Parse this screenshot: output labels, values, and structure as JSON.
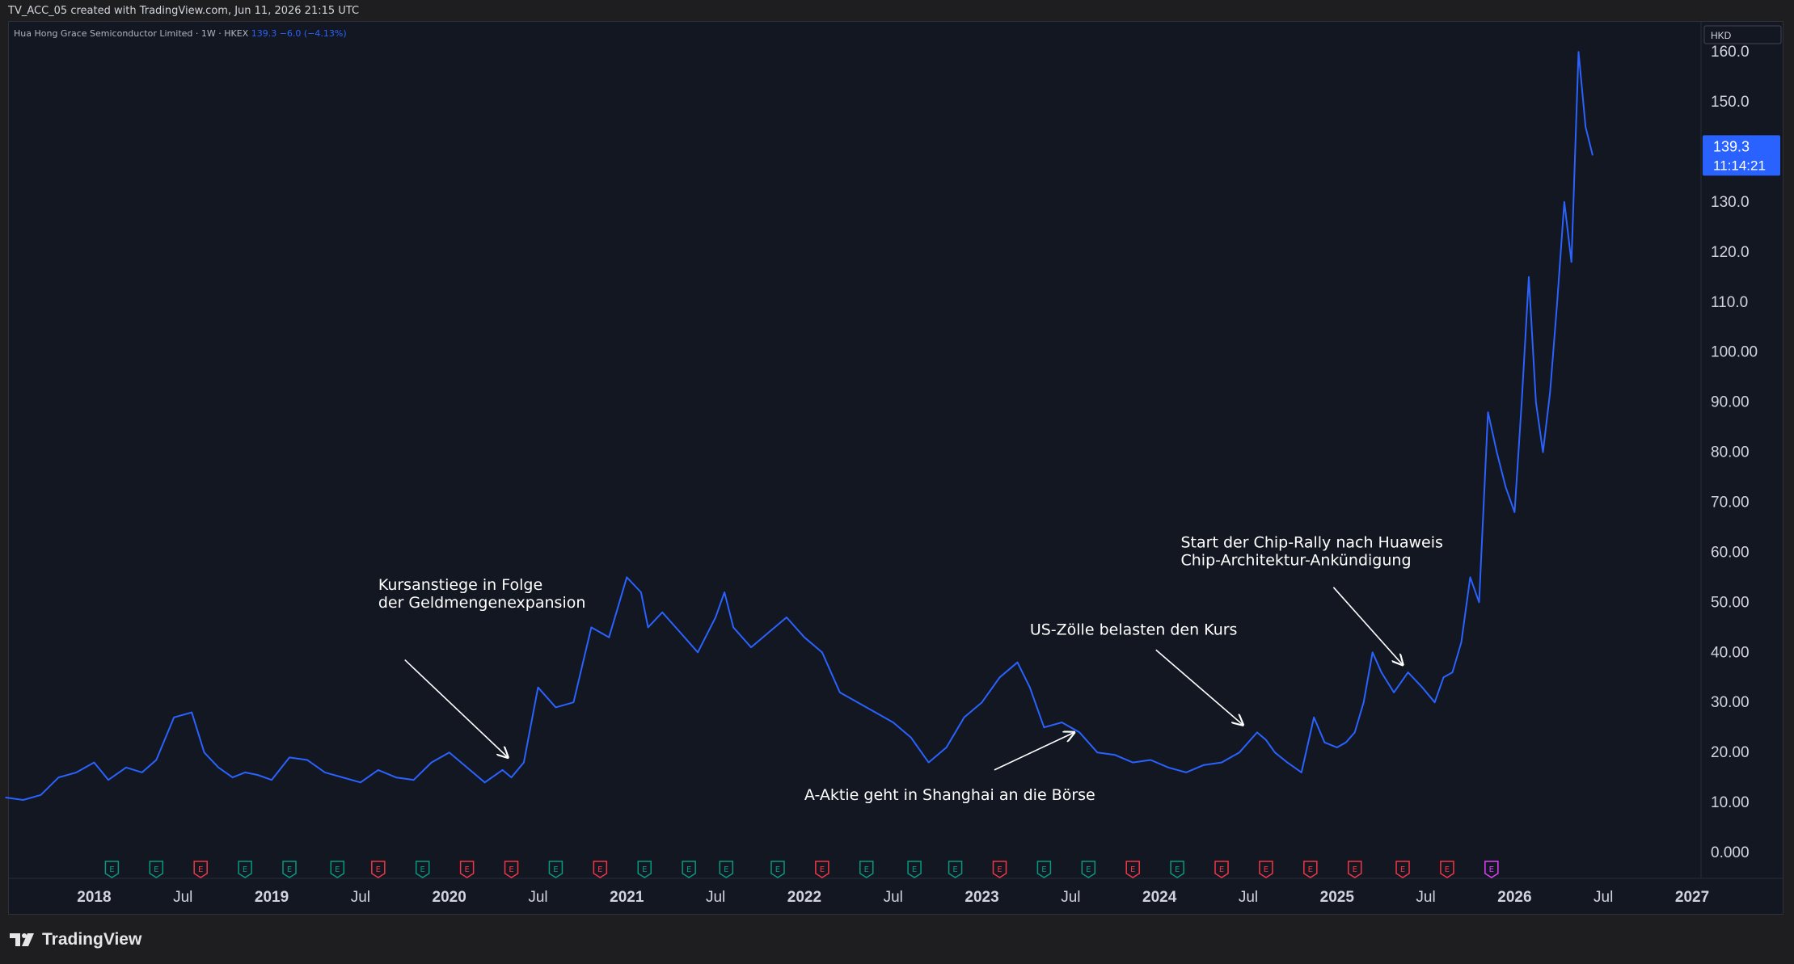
{
  "header": {
    "caption": "TV_ACC_05 created with TradingView.com, Jun 11, 2026 21:15 UTC"
  },
  "legend": {
    "symbol": "Hua Hong Grace Semiconductor Limited · 1W · HKEX",
    "last": "139.3",
    "change": "−6.0 (−4.13%)"
  },
  "currency_label": "HKD",
  "price_badge": {
    "price": "139.3",
    "countdown": "11:14:21"
  },
  "footer": {
    "brand": "TradingView"
  },
  "colors": {
    "background": "#131722",
    "line": "#2962ff",
    "badge": "#2962ff",
    "earnings_green": "#089981",
    "earnings_red": "#f23645",
    "earnings_future": "#e040fb",
    "text": "#d1d4dc",
    "annotation": "#ffffff"
  },
  "chart_data": {
    "type": "line",
    "series": [
      {
        "x": [
          2017.5,
          2017.6,
          2017.7,
          2017.8,
          2017.9,
          2018.0,
          2018.08,
          2018.18,
          2018.27,
          2018.35,
          2018.45,
          2018.55,
          2018.62,
          2018.7,
          2018.78,
          2018.85,
          2018.92,
          2019.0,
          2019.1,
          2019.2,
          2019.3,
          2019.4,
          2019.5,
          2019.6,
          2019.7,
          2019.8,
          2019.9,
          2020.0,
          2020.1,
          2020.2,
          2020.3,
          2020.35,
          2020.42,
          2020.5,
          2020.6,
          2020.7,
          2020.8,
          2020.9,
          2021.0,
          2021.08,
          2021.12,
          2021.2,
          2021.3,
          2021.4,
          2021.5,
          2021.55,
          2021.6,
          2021.7,
          2021.8,
          2021.9,
          2022.0,
          2022.1,
          2022.2,
          2022.3,
          2022.4,
          2022.5,
          2022.6,
          2022.7,
          2022.8,
          2022.9,
          2023.0,
          2023.1,
          2023.2,
          2023.27,
          2023.35,
          2023.45,
          2023.55,
          2023.65,
          2023.75,
          2023.85,
          2023.95,
          2024.05,
          2024.15,
          2024.25,
          2024.35,
          2024.45,
          2024.55,
          2024.6,
          2024.65,
          2024.72,
          2024.8,
          2024.87,
          2024.93,
          2025.0,
          2025.05,
          2025.1,
          2025.15,
          2025.2,
          2025.25,
          2025.32,
          2025.4,
          2025.48,
          2025.55,
          2025.6,
          2025.65,
          2025.7,
          2025.75,
          2025.8,
          2025.85,
          2025.9,
          2025.95,
          2026.0,
          2026.04,
          2026.08,
          2026.12,
          2026.16,
          2026.2,
          2026.24,
          2026.28,
          2026.32,
          2026.36,
          2026.4,
          2026.44
        ],
        "y": [
          11.0,
          10.5,
          11.5,
          15.0,
          16.0,
          18.0,
          14.5,
          17.0,
          16.0,
          18.5,
          27.0,
          28.0,
          20.0,
          17.0,
          15.0,
          16.0,
          15.5,
          14.5,
          19.0,
          18.5,
          16.0,
          15.0,
          14.0,
          16.5,
          15.0,
          14.5,
          18.0,
          20.0,
          17.0,
          14.0,
          16.5,
          15.0,
          18.0,
          33.0,
          29.0,
          30.0,
          45.0,
          43.0,
          55.0,
          52.0,
          45.0,
          48.0,
          44.0,
          40.0,
          47.0,
          52.0,
          45.0,
          41.0,
          44.0,
          47.0,
          43.0,
          40.0,
          32.0,
          30.0,
          28.0,
          26.0,
          23.0,
          18.0,
          21.0,
          27.0,
          30.0,
          35.0,
          38.0,
          33.0,
          25.0,
          26.0,
          24.0,
          20.0,
          19.5,
          18.0,
          18.5,
          17.0,
          16.0,
          17.5,
          18.0,
          20.0,
          24.0,
          22.5,
          20.0,
          18.0,
          16.0,
          27.0,
          22.0,
          21.0,
          22.0,
          24.0,
          30.0,
          40.0,
          36.0,
          32.0,
          36.0,
          33.0,
          30.0,
          35.0,
          36.0,
          42.0,
          55.0,
          50.0,
          88.0,
          80.0,
          73.0,
          68.0,
          90.0,
          115.0,
          90.0,
          80.0,
          92.0,
          110.0,
          130.0,
          118.0,
          160.0,
          145.0,
          139.3
        ]
      }
    ],
    "y_ticks": [
      "0.000",
      "10.00",
      "20.00",
      "30.00",
      "40.00",
      "50.00",
      "60.00",
      "70.00",
      "80.00",
      "90.00",
      "100.00",
      "110.0",
      "120.0",
      "130.0",
      "150.0",
      "160.0"
    ],
    "x_ticks": [
      {
        "label": "2018",
        "x": 2018.0,
        "bold": true
      },
      {
        "label": "Jul",
        "x": 2018.5,
        "bold": false
      },
      {
        "label": "2019",
        "x": 2019.0,
        "bold": true
      },
      {
        "label": "Jul",
        "x": 2019.5,
        "bold": false
      },
      {
        "label": "2020",
        "x": 2020.0,
        "bold": true
      },
      {
        "label": "Jul",
        "x": 2020.5,
        "bold": false
      },
      {
        "label": "2021",
        "x": 2021.0,
        "bold": true
      },
      {
        "label": "Jul",
        "x": 2021.5,
        "bold": false
      },
      {
        "label": "2022",
        "x": 2022.0,
        "bold": true
      },
      {
        "label": "Jul",
        "x": 2022.5,
        "bold": false
      },
      {
        "label": "2023",
        "x": 2023.0,
        "bold": true
      },
      {
        "label": "Jul",
        "x": 2023.5,
        "bold": false
      },
      {
        "label": "2024",
        "x": 2024.0,
        "bold": true
      },
      {
        "label": "Jul",
        "x": 2024.5,
        "bold": false
      },
      {
        "label": "2025",
        "x": 2025.0,
        "bold": true
      },
      {
        "label": "Jul",
        "x": 2025.5,
        "bold": false
      },
      {
        "label": "2026",
        "x": 2026.0,
        "bold": true
      },
      {
        "label": "Jul",
        "x": 2026.5,
        "bold": false
      },
      {
        "label": "2027",
        "x": 2027.0,
        "bold": true
      }
    ],
    "xlim": [
      2017.52,
      2027.05
    ],
    "ylim": [
      -5,
      166
    ],
    "earnings": [
      {
        "x": 2018.1,
        "kind": "green"
      },
      {
        "x": 2018.35,
        "kind": "green"
      },
      {
        "x": 2018.6,
        "kind": "red"
      },
      {
        "x": 2018.85,
        "kind": "green"
      },
      {
        "x": 2019.1,
        "kind": "green"
      },
      {
        "x": 2019.37,
        "kind": "green"
      },
      {
        "x": 2019.6,
        "kind": "red"
      },
      {
        "x": 2019.85,
        "kind": "green"
      },
      {
        "x": 2020.1,
        "kind": "red"
      },
      {
        "x": 2020.35,
        "kind": "red"
      },
      {
        "x": 2020.6,
        "kind": "green"
      },
      {
        "x": 2020.85,
        "kind": "red"
      },
      {
        "x": 2021.1,
        "kind": "green"
      },
      {
        "x": 2021.35,
        "kind": "green"
      },
      {
        "x": 2021.56,
        "kind": "green"
      },
      {
        "x": 2021.85,
        "kind": "green"
      },
      {
        "x": 2022.1,
        "kind": "red"
      },
      {
        "x": 2022.35,
        "kind": "green"
      },
      {
        "x": 2022.62,
        "kind": "green"
      },
      {
        "x": 2022.85,
        "kind": "green"
      },
      {
        "x": 2023.1,
        "kind": "red"
      },
      {
        "x": 2023.35,
        "kind": "green"
      },
      {
        "x": 2023.6,
        "kind": "green"
      },
      {
        "x": 2023.85,
        "kind": "red"
      },
      {
        "x": 2024.1,
        "kind": "green"
      },
      {
        "x": 2024.35,
        "kind": "red"
      },
      {
        "x": 2024.6,
        "kind": "red"
      },
      {
        "x": 2024.85,
        "kind": "red"
      },
      {
        "x": 2025.1,
        "kind": "red"
      },
      {
        "x": 2025.37,
        "kind": "red"
      },
      {
        "x": 2025.62,
        "kind": "red"
      },
      {
        "x": 2025.87,
        "kind": "future"
      }
    ],
    "annotations": [
      {
        "name": "annotation-money-supply",
        "lines": [
          "Kursanstiege in Folge",
          "der Geldmengenexpansion"
        ],
        "text_x": 2019.6,
        "text_y": 52.5,
        "arrow_from": [
          2019.75,
          38.5
        ],
        "arrow_to": [
          2020.33,
          19.0
        ]
      },
      {
        "name": "annotation-shanghai-listing",
        "lines": [
          "A-Aktie geht in Shanghai an die Börse"
        ],
        "text_x": 2022.0,
        "text_y": 10.5,
        "arrow_from": [
          2023.07,
          16.5
        ],
        "arrow_to": [
          2023.52,
          24.0
        ]
      },
      {
        "name": "annotation-us-tariffs",
        "lines": [
          "US-Zölle belasten den Kurs"
        ],
        "text_x": 2023.27,
        "text_y": 43.5,
        "arrow_from": [
          2023.98,
          40.5
        ],
        "arrow_to": [
          2024.47,
          25.5
        ]
      },
      {
        "name": "annotation-chip-rally",
        "lines": [
          "Start der Chip-Rally nach Huaweis",
          "Chip-Architektur-Ankündigung"
        ],
        "text_x": 2024.12,
        "text_y": 61.0,
        "arrow_from": [
          2024.98,
          53.0
        ],
        "arrow_to": [
          2025.37,
          37.5
        ]
      }
    ]
  }
}
